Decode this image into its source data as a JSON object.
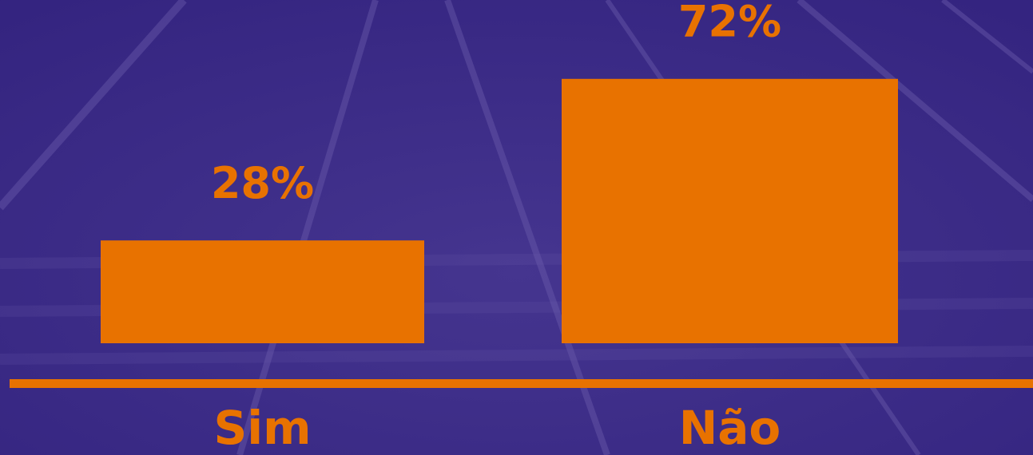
{
  "chart_data": {
    "type": "bar",
    "categories": [
      "Sim",
      "Não"
    ],
    "values": [
      28,
      72
    ],
    "value_labels": [
      "28%",
      "72%"
    ],
    "color": "#e87200"
  }
}
